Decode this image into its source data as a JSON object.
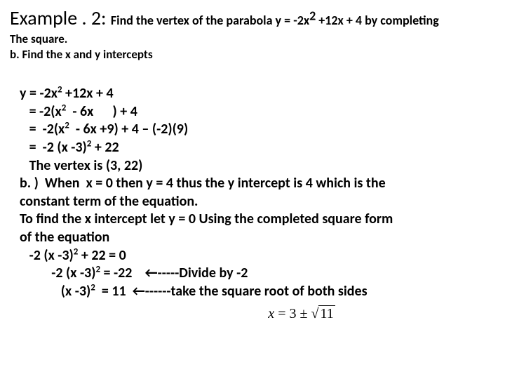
{
  "title": {
    "main": "Example . 2:  ",
    "sub_part1": "Find the vertex of the parabola y = -2x",
    "sub_exp": "2",
    "sub_part2": " +12x + 4 by completing"
  },
  "header": {
    "line1": "The square.",
    "line2": "b. Find the x and y intercepts"
  },
  "work": {
    "l1a": "y = -2x",
    "l1e": "2",
    "l1b": " +12x + 4",
    "l2a": "   = -2(x",
    "l2e": "2",
    "l2b": "  - 6x      ) + 4",
    "l3a": "   =  -2(x",
    "l3e": "2",
    "l3b": "  - 6x +9) + 4 – (-2)(9)",
    "l4a": "   =  -2 (x -3)",
    "l4e": "2",
    "l4b": " + 22",
    "l5": "   The vertex is (3, 22)",
    "l6": "b. )  When  x = 0 then y = 4 thus the y intercept is 4 which is the",
    "l7": "constant term of the equation.",
    "l8": "To find the x intercept let y = 0 Using the completed square form",
    "l9": "of the equation",
    "l10a": "   -2 (x -3)",
    "l10e": "2",
    "l10b": " + 22 = 0",
    "l11a": "          -2 (x -3)",
    "l11e": "2",
    "l11b": " = -22    ←-----Divide by -2",
    "l12a": "             (x -3)",
    "l12e": "2",
    "l12b": "  = 11  ←------take the square root of both sides"
  },
  "final": {
    "lhs": "x",
    "eq": " = 3 ± ",
    "radicand": "11"
  }
}
